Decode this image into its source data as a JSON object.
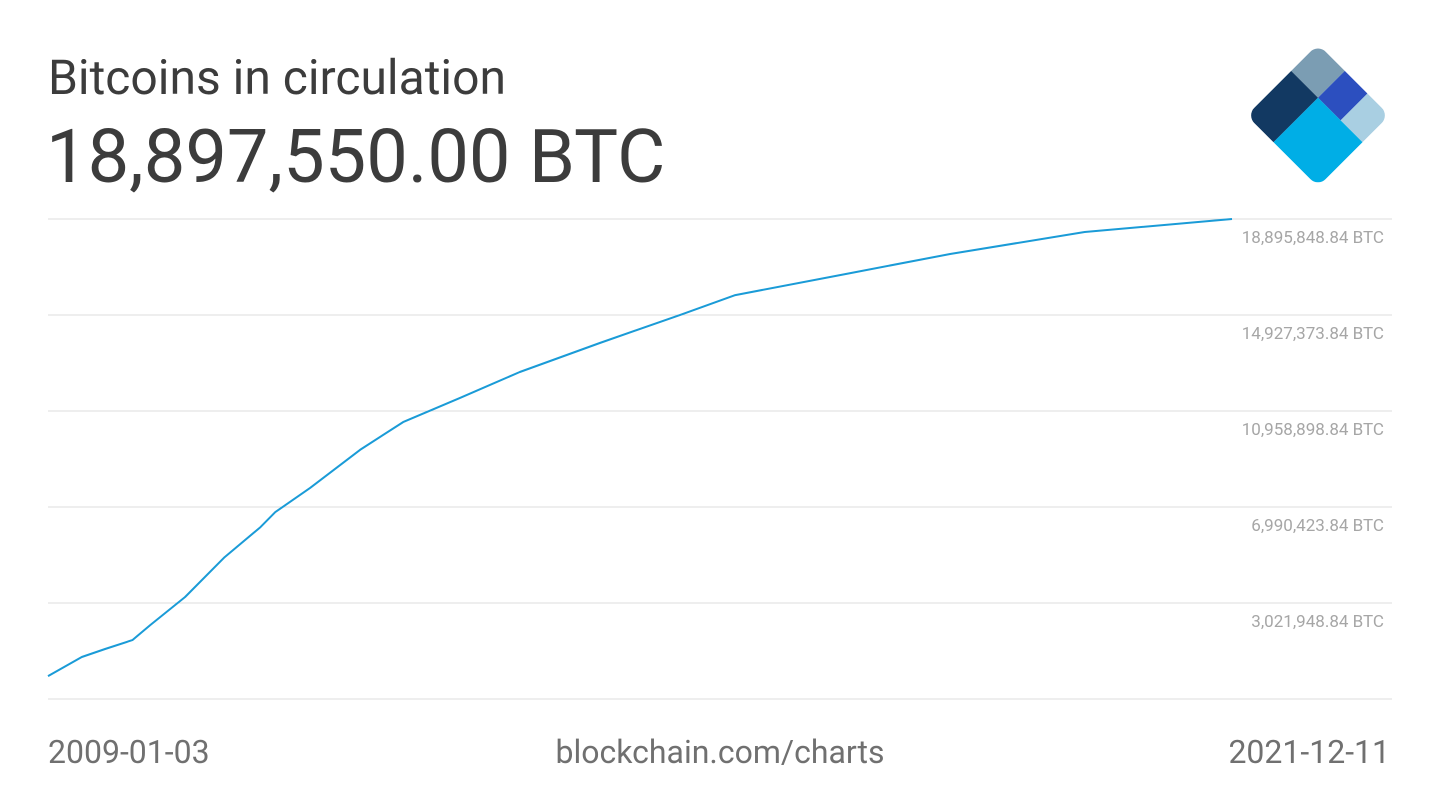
{
  "chart_data": {
    "type": "line",
    "title": "Bitcoins in circulation",
    "headline": "18,897,550.00 BTC",
    "source": "blockchain.com/charts",
    "xlim": [
      "2009-01-03",
      "2021-12-11"
    ],
    "ylim": [
      -946526.16,
      18895848.84
    ],
    "yticks": [
      {
        "value": 3021948.84,
        "label": "3,021,948.84 BTC"
      },
      {
        "value": 6990423.84,
        "label": "6,990,423.84 BTC"
      },
      {
        "value": 10958898.84,
        "label": "10,958,898.84 BTC"
      },
      {
        "value": 14927373.84,
        "label": "14,927,373.84 BTC"
      },
      {
        "value": 18895848.84,
        "label": "18,895,848.84 BTC"
      }
    ],
    "grid": true,
    "color": "#1a9bd7",
    "x": [
      "2009-01-03",
      "2009-05-18",
      "2009-08-19",
      "2009-12-06",
      "2010-02-15",
      "2010-07-04",
      "2010-12-09",
      "2011-05-01",
      "2011-06-29",
      "2011-11-15",
      "2012-06-01",
      "2012-11-20",
      "2013-07-05",
      "2014-03-01",
      "2015-01-14",
      "2015-12-01",
      "2016-07-08",
      "2017-10-10",
      "2018-11-12",
      "2020-05-02",
      "2021-12-11"
    ],
    "values": [
      50,
      790000,
      1120000,
      1490000,
      2110000,
      3270000,
      4920000,
      6160000,
      6780000,
      7780000,
      9350000,
      10500000,
      11500000,
      12570000,
      13770000,
      14930000,
      15750000,
      16660000,
      17450000,
      18360000,
      18897550
    ]
  }
}
